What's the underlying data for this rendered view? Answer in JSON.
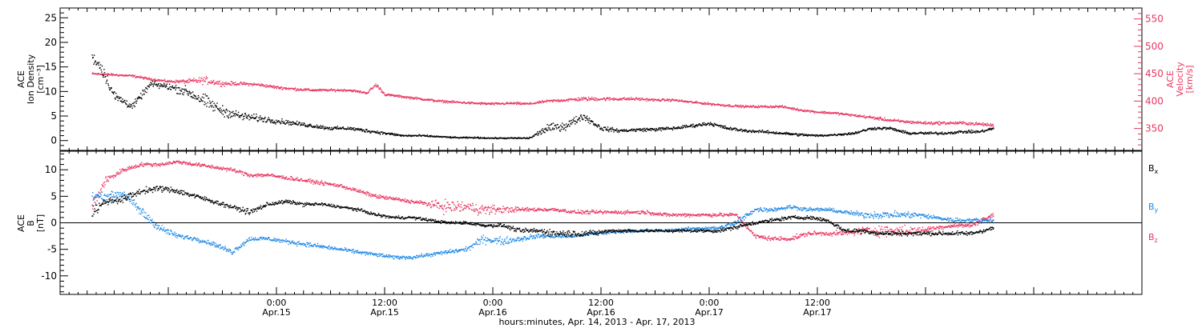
{
  "chart_data": [
    {
      "type": "scatter",
      "panel": "density-velocity",
      "left_axis": {
        "label_lines": [
          "ACE",
          "Ion Density",
          "[cm⁻³]"
        ],
        "ylim": [
          -2,
          27
        ],
        "ticks": [
          0,
          5,
          10,
          15,
          20,
          25
        ],
        "color": "#000000"
      },
      "right_axis": {
        "label_lines": [
          "ACE",
          "Velocity",
          "[km/s]"
        ],
        "ylim": [
          310,
          570
        ],
        "ticks": [
          350,
          400,
          450,
          500,
          550
        ],
        "color": "#e8365f"
      },
      "series": [
        {
          "axis": "left",
          "color": "#000000",
          "x": [
            -20.5,
            -19.5,
            -18,
            -16,
            -14,
            -12,
            -10,
            -8,
            -6,
            -4,
            -2,
            0,
            2,
            4,
            6,
            8,
            10,
            12,
            14,
            16,
            18,
            20,
            22,
            24,
            26,
            28,
            30,
            32,
            34,
            36,
            38,
            40,
            42,
            44,
            46,
            48,
            50,
            52,
            54,
            56,
            58,
            60,
            62,
            64,
            66,
            68,
            70,
            72,
            74,
            76,
            78,
            79.5
          ],
          "y": [
            17,
            15,
            9,
            7,
            11.5,
            11,
            10,
            8,
            6,
            5,
            4.5,
            4,
            3.5,
            3,
            2.5,
            2.5,
            2,
            1.5,
            1,
            1,
            0.8,
            0.6,
            0.6,
            0.5,
            0.5,
            0.5,
            2.5,
            3,
            5,
            2.5,
            2,
            2.2,
            2.3,
            2.5,
            3,
            3.5,
            2.5,
            2,
            1.8,
            1.5,
            1.2,
            1,
            1.2,
            1.5,
            2.5,
            2.5,
            1.5,
            1.5,
            1.5,
            1.8,
            1.8,
            2.5
          ],
          "spread": [
            1.5,
            2,
            1.5,
            1,
            1,
            1,
            1.5,
            2,
            1.5,
            1.2,
            1,
            0.8,
            0.6,
            0.6,
            0.5,
            0.5,
            0.5,
            0.4,
            0.3,
            0.3,
            0.2,
            0.2,
            0.2,
            0.2,
            0.2,
            0.3,
            1.2,
            1.2,
            1,
            0.7,
            0.5,
            0.5,
            0.5,
            0.5,
            0.5,
            0.5,
            0.5,
            0.4,
            0.4,
            0.4,
            0.4,
            0.3,
            0.3,
            0.4,
            0.4,
            0.4,
            0.4,
            0.4,
            0.4,
            0.4,
            0.4,
            0.4
          ]
        },
        {
          "axis": "right",
          "color": "#e8365f",
          "x": [
            -20.5,
            -18,
            -16,
            -14,
            -12,
            -10,
            -8,
            -6,
            -4,
            -2,
            0,
            2,
            4,
            6,
            8,
            10,
            11,
            12,
            14,
            16,
            18,
            20,
            22,
            24,
            26,
            28,
            30,
            32,
            34,
            36,
            38,
            40,
            42,
            44,
            46,
            48,
            50,
            52,
            54,
            56,
            58,
            60,
            62,
            64,
            66,
            68,
            70,
            72,
            74,
            76,
            78,
            79.5
          ],
          "y": [
            450,
            448,
            446,
            440,
            436,
            436,
            438,
            432,
            432,
            430,
            425,
            422,
            420,
            420,
            420,
            415,
            430,
            412,
            408,
            404,
            400,
            398,
            396,
            395,
            396,
            395,
            400,
            402,
            404,
            404,
            404,
            404,
            402,
            402,
            398,
            395,
            392,
            390,
            390,
            390,
            384,
            380,
            378,
            374,
            370,
            365,
            362,
            360,
            360,
            360,
            358,
            356
          ],
          "spread": [
            3,
            3,
            3,
            3,
            3,
            5,
            10,
            6,
            4,
            4,
            4,
            4,
            3,
            3,
            3,
            3,
            6,
            3,
            3,
            3,
            3,
            3,
            3,
            3,
            3,
            3,
            3,
            4,
            5,
            5,
            4,
            4,
            3,
            3,
            3,
            3,
            3,
            3,
            3,
            3,
            3,
            3,
            3,
            3,
            4,
            4,
            4,
            4,
            4,
            4,
            4,
            4
          ]
        }
      ]
    },
    {
      "type": "scatter",
      "panel": "magnetic-field",
      "left_axis": {
        "label_lines": [
          "ACE",
          "B",
          "[nT]"
        ],
        "ylim": [
          -13.5,
          13.5
        ],
        "ticks": [
          -10,
          -5,
          0,
          5,
          10
        ],
        "color": "#000000"
      },
      "zero_line": true,
      "series": [
        {
          "name": "Bx",
          "color": "#000000",
          "x": [
            -20.5,
            -19,
            -17,
            -15,
            -13,
            -11,
            -9,
            -7,
            -5,
            -3,
            -1,
            1,
            3,
            5,
            7,
            9,
            11,
            13,
            15,
            17,
            19,
            21,
            23,
            25,
            27,
            29,
            31,
            33,
            35,
            37,
            39,
            41,
            43,
            45,
            47,
            49,
            51,
            53,
            55,
            57,
            59,
            61,
            63,
            65,
            67,
            69,
            71,
            73,
            75,
            77,
            79.5
          ],
          "y": [
            2,
            4,
            4.5,
            6,
            6.5,
            6,
            5,
            4,
            3,
            2,
            3.5,
            4,
            3.5,
            3.5,
            3,
            2.5,
            1.5,
            1,
            1,
            0.5,
            0,
            0,
            -0.5,
            -0.5,
            -1.5,
            -1.5,
            -2,
            -2,
            -2,
            -1.5,
            -1.5,
            -1.5,
            -1.5,
            -1.5,
            -1.5,
            -1.5,
            -0.8,
            0,
            0.5,
            1,
            1,
            0.5,
            -1.5,
            -1.5,
            -2,
            -2,
            -2,
            -2,
            -2,
            -2,
            -1
          ],
          "spread": [
            1.5,
            1,
            1,
            0.8,
            0.8,
            0.8,
            0.7,
            0.6,
            0.5,
            0.8,
            0.6,
            0.5,
            0.5,
            0.4,
            0.4,
            0.4,
            0.4,
            0.4,
            0.4,
            0.4,
            0.4,
            0.4,
            0.4,
            0.5,
            0.6,
            0.8,
            1,
            1,
            0.8,
            0.5,
            0.5,
            0.4,
            0.4,
            0.4,
            0.4,
            0.5,
            0.5,
            0.5,
            0.5,
            0.5,
            0.5,
            0.5,
            0.6,
            0.6,
            0.6,
            0.6,
            0.6,
            0.6,
            0.6,
            0.6,
            0.6
          ]
        },
        {
          "name": "By",
          "color": "#1e88e5",
          "x": [
            -20.5,
            -19,
            -17,
            -15,
            -13,
            -11,
            -9,
            -7,
            -5,
            -3,
            -1,
            1,
            3,
            5,
            7,
            9,
            11,
            13,
            15,
            17,
            19,
            21,
            23,
            25,
            27,
            29,
            31,
            33,
            35,
            37,
            39,
            41,
            43,
            45,
            47,
            49,
            51,
            53,
            55,
            57,
            59,
            61,
            63,
            65,
            67,
            69,
            71,
            73,
            75,
            77,
            79.5
          ],
          "y": [
            5,
            5,
            5.5,
            2,
            -1,
            -2.5,
            -3,
            -4,
            -5.5,
            -3,
            -3,
            -3.5,
            -4,
            -4.5,
            -5,
            -5.5,
            -6,
            -6.5,
            -6.5,
            -6,
            -5.5,
            -5,
            -3,
            -3.5,
            -3,
            -2.5,
            -2.5,
            -2.5,
            -2,
            -1.8,
            -1.5,
            -1.5,
            -1.5,
            -1.2,
            -1,
            -1,
            0,
            2.5,
            2.5,
            3,
            2.5,
            2.5,
            2,
            1.5,
            1.5,
            1.5,
            1.5,
            1,
            0.5,
            0.5,
            0.5
          ],
          "spread": [
            1,
            1,
            1,
            1.5,
            1,
            0.7,
            0.6,
            0.6,
            0.8,
            0.6,
            0.6,
            0.6,
            0.6,
            0.6,
            0.5,
            0.5,
            0.5,
            0.5,
            0.5,
            0.5,
            0.6,
            0.6,
            1.2,
            1,
            0.8,
            0.6,
            0.6,
            0.5,
            0.5,
            0.5,
            0.4,
            0.4,
            0.4,
            0.4,
            0.4,
            0.5,
            1,
            0.6,
            0.6,
            0.6,
            0.5,
            0.5,
            0.5,
            0.8,
            1,
            1,
            0.8,
            0.6,
            0.6,
            0.6,
            0.6
          ]
        },
        {
          "name": "Bz",
          "color": "#e8365f",
          "x": [
            -20.5,
            -19,
            -17,
            -15,
            -13,
            -11,
            -9,
            -7,
            -5,
            -3,
            -1,
            1,
            3,
            5,
            7,
            9,
            11,
            13,
            15,
            17,
            19,
            21,
            23,
            25,
            27,
            29,
            31,
            33,
            35,
            37,
            39,
            41,
            43,
            45,
            47,
            49,
            51,
            53,
            55,
            57,
            59,
            61,
            63,
            65,
            67,
            69,
            71,
            73,
            75,
            77,
            79.5
          ],
          "y": [
            3,
            8,
            10,
            11,
            11,
            11.5,
            11,
            10.5,
            10,
            9,
            9,
            8.5,
            8,
            7.5,
            7,
            6,
            5,
            4.5,
            4,
            3.5,
            3,
            3,
            2.5,
            2.5,
            2.5,
            2.5,
            2.5,
            2,
            2,
            2,
            2,
            2,
            1.5,
            1.5,
            1.5,
            1.5,
            1.5,
            -2.5,
            -3,
            -3,
            -2,
            -2,
            -2,
            -1.5,
            -1.5,
            -1.5,
            -1.5,
            -1,
            -0.5,
            -0.5,
            1.5
          ],
          "spread": [
            2,
            1,
            0.6,
            0.5,
            0.5,
            0.5,
            0.5,
            0.5,
            0.5,
            0.6,
            0.5,
            0.5,
            0.5,
            0.5,
            0.5,
            0.5,
            0.5,
            0.5,
            0.5,
            0.8,
            2,
            1.5,
            1.5,
            1,
            0.6,
            0.5,
            0.5,
            0.5,
            0.5,
            0.5,
            0.5,
            0.5,
            0.5,
            0.5,
            0.5,
            0.5,
            0.5,
            0.6,
            0.6,
            0.6,
            0.6,
            0.6,
            0.6,
            1.2,
            1.5,
            1.5,
            1,
            0.6,
            0.6,
            0.6,
            0.6
          ]
        }
      ]
    }
  ],
  "x_axis": {
    "xlim": [
      -24,
      96
    ],
    "major_ticks": [
      0,
      24,
      48,
      72
    ],
    "tick_labels": [
      {
        "x": 0,
        "time": "0:00",
        "date": "Apr.15"
      },
      {
        "x": 12,
        "time": "12:00",
        "date": "Apr.15"
      },
      {
        "x": 24,
        "time": "0:00",
        "date": "Apr.16"
      },
      {
        "x": 36,
        "time": "12:00",
        "date": "Apr.16"
      },
      {
        "x": 48,
        "time": "0:00",
        "date": "Apr.17"
      },
      {
        "x": 60,
        "time": "12:00",
        "date": "Apr.17"
      }
    ],
    "title": "hours:minutes, Apr. 14, 2013 - Apr. 17, 2013"
  },
  "legend": [
    {
      "text": "B",
      "sub": "x",
      "color": "#000000"
    },
    {
      "text": "B",
      "sub": "y",
      "color": "#1e88e5"
    },
    {
      "text": "B",
      "sub": "z",
      "color": "#e8365f"
    }
  ]
}
